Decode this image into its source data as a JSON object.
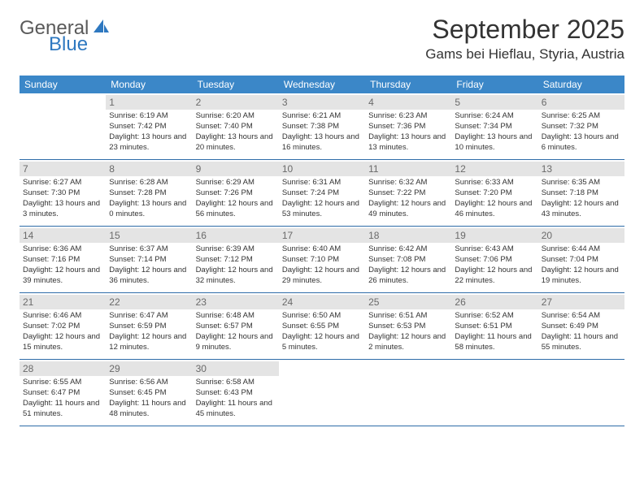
{
  "brand": {
    "word1": "General",
    "word2": "Blue",
    "color1": "#5a5a5a",
    "color2": "#2e78c0"
  },
  "title": "September 2025",
  "location": "Gams bei Hieflau, Styria, Austria",
  "colors": {
    "header_bg": "#3b87c8",
    "header_text": "#ffffff",
    "daynum_bg": "#e4e4e4",
    "daynum_text": "#6a6a6a",
    "row_border": "#2e6ca8",
    "body_text": "#333333"
  },
  "fonts": {
    "title_size": 32,
    "location_size": 17,
    "th_size": 12,
    "cell_size": 9.5,
    "daynum_size": 12
  },
  "dayHeaders": [
    "Sunday",
    "Monday",
    "Tuesday",
    "Wednesday",
    "Thursday",
    "Friday",
    "Saturday"
  ],
  "weeks": [
    [
      null,
      {
        "n": "1",
        "sr": "6:19 AM",
        "ss": "7:42 PM",
        "dl": "13 hours and 23 minutes."
      },
      {
        "n": "2",
        "sr": "6:20 AM",
        "ss": "7:40 PM",
        "dl": "13 hours and 20 minutes."
      },
      {
        "n": "3",
        "sr": "6:21 AM",
        "ss": "7:38 PM",
        "dl": "13 hours and 16 minutes."
      },
      {
        "n": "4",
        "sr": "6:23 AM",
        "ss": "7:36 PM",
        "dl": "13 hours and 13 minutes."
      },
      {
        "n": "5",
        "sr": "6:24 AM",
        "ss": "7:34 PM",
        "dl": "13 hours and 10 minutes."
      },
      {
        "n": "6",
        "sr": "6:25 AM",
        "ss": "7:32 PM",
        "dl": "13 hours and 6 minutes."
      }
    ],
    [
      {
        "n": "7",
        "sr": "6:27 AM",
        "ss": "7:30 PM",
        "dl": "13 hours and 3 minutes."
      },
      {
        "n": "8",
        "sr": "6:28 AM",
        "ss": "7:28 PM",
        "dl": "13 hours and 0 minutes."
      },
      {
        "n": "9",
        "sr": "6:29 AM",
        "ss": "7:26 PM",
        "dl": "12 hours and 56 minutes."
      },
      {
        "n": "10",
        "sr": "6:31 AM",
        "ss": "7:24 PM",
        "dl": "12 hours and 53 minutes."
      },
      {
        "n": "11",
        "sr": "6:32 AM",
        "ss": "7:22 PM",
        "dl": "12 hours and 49 minutes."
      },
      {
        "n": "12",
        "sr": "6:33 AM",
        "ss": "7:20 PM",
        "dl": "12 hours and 46 minutes."
      },
      {
        "n": "13",
        "sr": "6:35 AM",
        "ss": "7:18 PM",
        "dl": "12 hours and 43 minutes."
      }
    ],
    [
      {
        "n": "14",
        "sr": "6:36 AM",
        "ss": "7:16 PM",
        "dl": "12 hours and 39 minutes."
      },
      {
        "n": "15",
        "sr": "6:37 AM",
        "ss": "7:14 PM",
        "dl": "12 hours and 36 minutes."
      },
      {
        "n": "16",
        "sr": "6:39 AM",
        "ss": "7:12 PM",
        "dl": "12 hours and 32 minutes."
      },
      {
        "n": "17",
        "sr": "6:40 AM",
        "ss": "7:10 PM",
        "dl": "12 hours and 29 minutes."
      },
      {
        "n": "18",
        "sr": "6:42 AM",
        "ss": "7:08 PM",
        "dl": "12 hours and 26 minutes."
      },
      {
        "n": "19",
        "sr": "6:43 AM",
        "ss": "7:06 PM",
        "dl": "12 hours and 22 minutes."
      },
      {
        "n": "20",
        "sr": "6:44 AM",
        "ss": "7:04 PM",
        "dl": "12 hours and 19 minutes."
      }
    ],
    [
      {
        "n": "21",
        "sr": "6:46 AM",
        "ss": "7:02 PM",
        "dl": "12 hours and 15 minutes."
      },
      {
        "n": "22",
        "sr": "6:47 AM",
        "ss": "6:59 PM",
        "dl": "12 hours and 12 minutes."
      },
      {
        "n": "23",
        "sr": "6:48 AM",
        "ss": "6:57 PM",
        "dl": "12 hours and 9 minutes."
      },
      {
        "n": "24",
        "sr": "6:50 AM",
        "ss": "6:55 PM",
        "dl": "12 hours and 5 minutes."
      },
      {
        "n": "25",
        "sr": "6:51 AM",
        "ss": "6:53 PM",
        "dl": "12 hours and 2 minutes."
      },
      {
        "n": "26",
        "sr": "6:52 AM",
        "ss": "6:51 PM",
        "dl": "11 hours and 58 minutes."
      },
      {
        "n": "27",
        "sr": "6:54 AM",
        "ss": "6:49 PM",
        "dl": "11 hours and 55 minutes."
      }
    ],
    [
      {
        "n": "28",
        "sr": "6:55 AM",
        "ss": "6:47 PM",
        "dl": "11 hours and 51 minutes."
      },
      {
        "n": "29",
        "sr": "6:56 AM",
        "ss": "6:45 PM",
        "dl": "11 hours and 48 minutes."
      },
      {
        "n": "30",
        "sr": "6:58 AM",
        "ss": "6:43 PM",
        "dl": "11 hours and 45 minutes."
      },
      null,
      null,
      null,
      null
    ]
  ],
  "labels": {
    "sunrise": "Sunrise:",
    "sunset": "Sunset:",
    "daylight": "Daylight:"
  }
}
